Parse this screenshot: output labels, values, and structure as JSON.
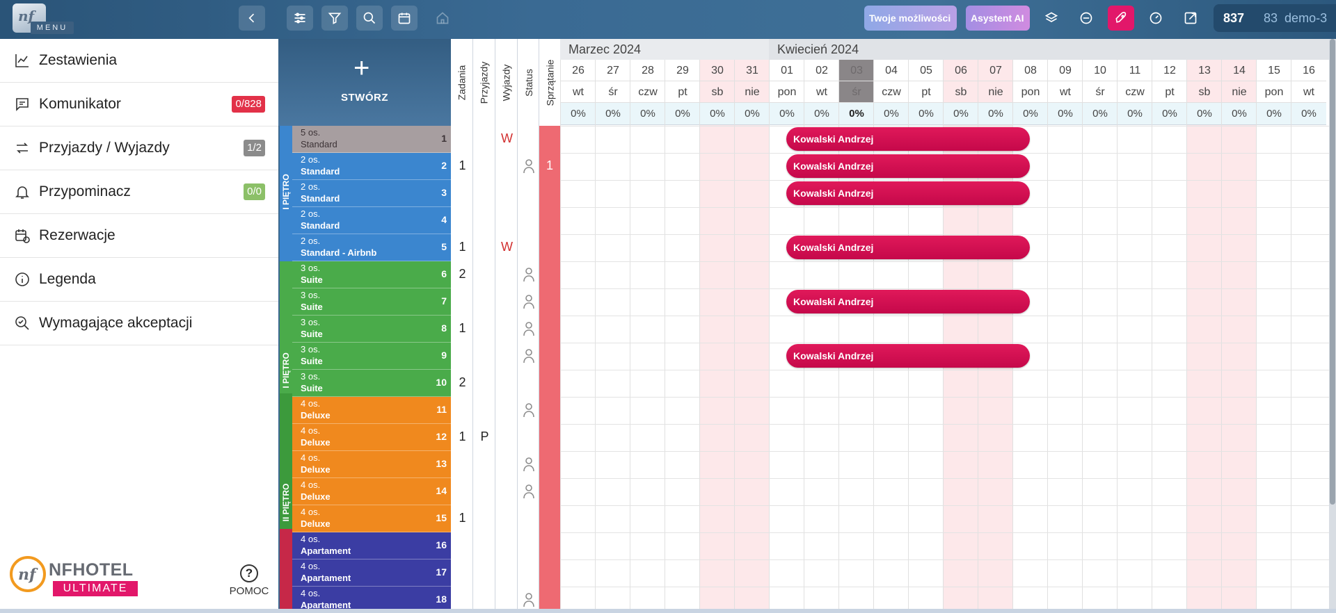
{
  "topbar": {
    "menu_label": "MENU",
    "opportunities_label": "Twoje możliwości",
    "ai_label": "Asystent AI",
    "counter_value": "837",
    "hotel_code": "83",
    "user": "demo-3"
  },
  "sidebar": {
    "items": [
      {
        "label": "Zestawienia",
        "icon": "chart-icon",
        "badge": ""
      },
      {
        "label": "Komunikator",
        "icon": "chat-icon",
        "badge": "0/828"
      },
      {
        "label": "Przyjazdy / Wyjazdy",
        "icon": "arrows-icon",
        "badge": "1/2"
      },
      {
        "label": "Przypominacz",
        "icon": "bell-icon",
        "badge": "0/0"
      },
      {
        "label": "Rezerwacje",
        "icon": "calendar-clock-icon",
        "badge": ""
      },
      {
        "label": "Legenda",
        "icon": "info-icon",
        "badge": ""
      },
      {
        "label": "Wymagające akceptacji",
        "icon": "search-check-icon",
        "badge": ""
      }
    ],
    "brand_name": "NFHOTEL",
    "brand_edition": "ULTIMATE",
    "help_label": "POMOC"
  },
  "create_label": "STWÓRZ",
  "columns": [
    "Zadania",
    "Przyjazdy",
    "Wyjazdy",
    "Status",
    "Sprzątanie"
  ],
  "floors": [
    "I PIĘTRO",
    "I PIĘTRO",
    "II PIĘTRO"
  ],
  "rooms": [
    {
      "cap": "5 os.",
      "type": "Standard",
      "num": "1"
    },
    {
      "cap": "2 os.",
      "type": "Standard",
      "num": "2"
    },
    {
      "cap": "2 os.",
      "type": "Standard",
      "num": "3"
    },
    {
      "cap": "2 os.",
      "type": "Standard",
      "num": "4"
    },
    {
      "cap": "2 os.",
      "type": "Standard - Airbnb",
      "num": "5"
    },
    {
      "cap": "3 os.",
      "type": "Suite",
      "num": "6"
    },
    {
      "cap": "3 os.",
      "type": "Suite",
      "num": "7"
    },
    {
      "cap": "3 os.",
      "type": "Suite",
      "num": "8"
    },
    {
      "cap": "3 os.",
      "type": "Suite",
      "num": "9"
    },
    {
      "cap": "3 os.",
      "type": "Suite",
      "num": "10"
    },
    {
      "cap": "4 os.",
      "type": "Deluxe",
      "num": "11"
    },
    {
      "cap": "4 os.",
      "type": "Deluxe",
      "num": "12"
    },
    {
      "cap": "4 os.",
      "type": "Deluxe",
      "num": "13"
    },
    {
      "cap": "4 os.",
      "type": "Deluxe",
      "num": "14"
    },
    {
      "cap": "4 os.",
      "type": "Deluxe",
      "num": "15"
    },
    {
      "cap": "4 os.",
      "type": "Apartament",
      "num": "16"
    },
    {
      "cap": "4 os.",
      "type": "Apartament",
      "num": "17"
    },
    {
      "cap": "4 os.",
      "type": "Apartament",
      "num": "18"
    }
  ],
  "tasks": {
    "zadania": [
      "1",
      "1",
      "2",
      "1",
      "2",
      "1",
      "1"
    ],
    "przyjazdy": "P",
    "wyjazdy": "W",
    "sprzatanie": "1"
  },
  "calendar": {
    "months": [
      "Marzec 2024",
      "Kwiecień 2024"
    ],
    "days": [
      {
        "d": "26",
        "n": "wt",
        "p": "0%"
      },
      {
        "d": "27",
        "n": "śr",
        "p": "0%"
      },
      {
        "d": "28",
        "n": "czw",
        "p": "0%"
      },
      {
        "d": "29",
        "n": "pt",
        "p": "0%"
      },
      {
        "d": "30",
        "n": "sb",
        "p": "0%"
      },
      {
        "d": "31",
        "n": "nie",
        "p": "0%"
      },
      {
        "d": "01",
        "n": "pon",
        "p": "0%"
      },
      {
        "d": "02",
        "n": "wt",
        "p": "0%"
      },
      {
        "d": "03",
        "n": "śr",
        "p": "0%"
      },
      {
        "d": "04",
        "n": "czw",
        "p": "0%"
      },
      {
        "d": "05",
        "n": "pt",
        "p": "0%"
      },
      {
        "d": "06",
        "n": "sb",
        "p": "0%"
      },
      {
        "d": "07",
        "n": "nie",
        "p": "0%"
      },
      {
        "d": "08",
        "n": "pon",
        "p": "0%"
      },
      {
        "d": "09",
        "n": "wt",
        "p": "0%"
      },
      {
        "d": "10",
        "n": "śr",
        "p": "0%"
      },
      {
        "d": "11",
        "n": "czw",
        "p": "0%"
      },
      {
        "d": "12",
        "n": "pt",
        "p": "0%"
      },
      {
        "d": "13",
        "n": "sb",
        "p": "0%"
      },
      {
        "d": "14",
        "n": "nie",
        "p": "0%"
      },
      {
        "d": "15",
        "n": "pon",
        "p": "0%"
      },
      {
        "d": "16",
        "n": "wt",
        "p": "0%"
      }
    ],
    "reservation_guest": "Kowalski Andrzej"
  }
}
